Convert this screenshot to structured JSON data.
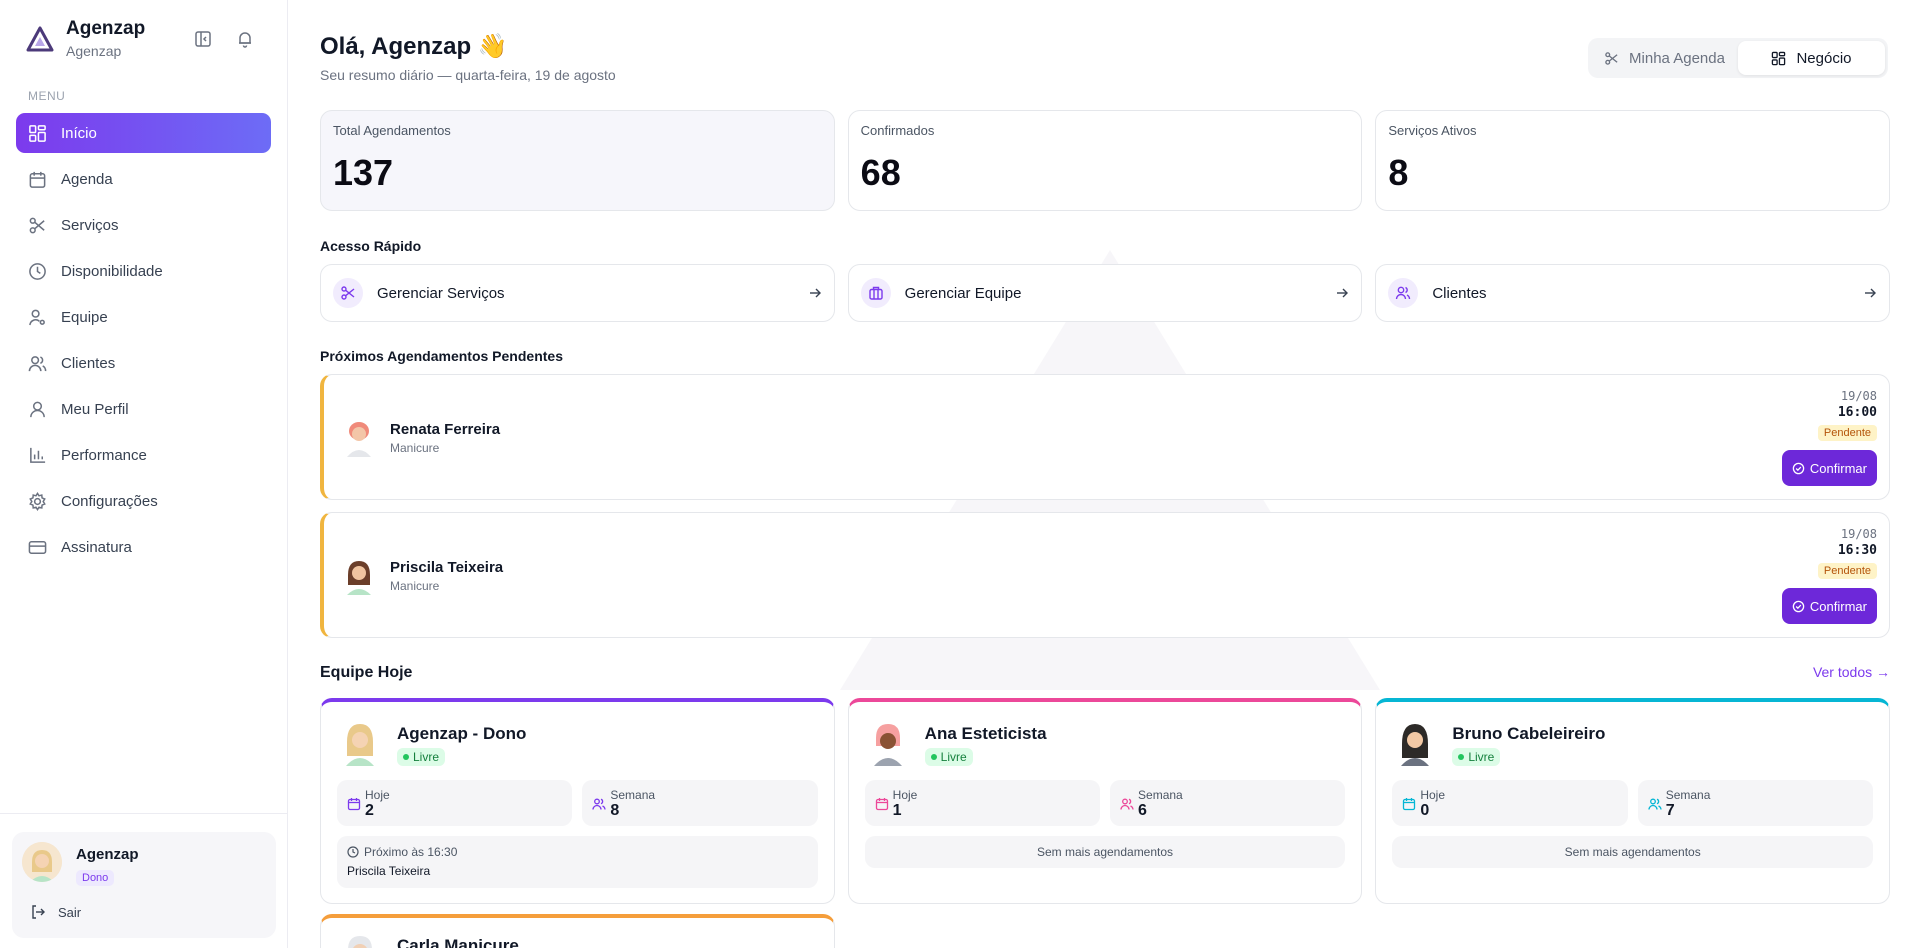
{
  "brand": {
    "name": "Agenzap",
    "subtitle": "Agenzap"
  },
  "sidebar": {
    "menu_caption": "MENU",
    "items": [
      {
        "label": "Início",
        "icon": "grid-icon",
        "active": true
      },
      {
        "label": "Agenda",
        "icon": "calendar-icon"
      },
      {
        "label": "Serviços",
        "icon": "scissors-icon"
      },
      {
        "label": "Disponibilidade",
        "icon": "clock-icon"
      },
      {
        "label": "Equipe",
        "icon": "user-gear-icon"
      },
      {
        "label": "Clientes",
        "icon": "users-icon"
      },
      {
        "label": "Meu Perfil",
        "icon": "user-icon"
      },
      {
        "label": "Performance",
        "icon": "bar-chart-icon"
      },
      {
        "label": "Configurações",
        "icon": "gear-icon"
      },
      {
        "label": "Assinatura",
        "icon": "credit-card-icon"
      }
    ],
    "user": {
      "name": "Agenzap",
      "role": "Dono",
      "logout": "Sair"
    }
  },
  "header": {
    "greeting": "Olá, Agenzap 👋",
    "subtitle": "Seu resumo diário — quarta-feira, 19 de agosto",
    "toggle": [
      {
        "label": "Minha Agenda",
        "icon": "scissors-icon",
        "active": false
      },
      {
        "label": "Negócio",
        "icon": "grid-icon",
        "active": true
      }
    ]
  },
  "stats": [
    {
      "label": "Total Agendamentos",
      "value": "137"
    },
    {
      "label": "Confirmados",
      "value": "68"
    },
    {
      "label": "Serviços Ativos",
      "value": "8"
    }
  ],
  "quick_access": {
    "title": "Acesso Rápido",
    "items": [
      {
        "label": "Gerenciar Serviços",
        "icon": "scissors-icon"
      },
      {
        "label": "Gerenciar Equipe",
        "icon": "briefcase-icon"
      },
      {
        "label": "Clientes",
        "icon": "users-icon"
      }
    ]
  },
  "pending": {
    "title": "Próximos Agendamentos Pendentes",
    "items": [
      {
        "name": "Renata Ferreira",
        "service": "Manicure",
        "date": "19/08",
        "time": "16:00",
        "status": "Pendente",
        "action": "Confirmar"
      },
      {
        "name": "Priscila Teixeira",
        "service": "Manicure",
        "date": "19/08",
        "time": "16:30",
        "status": "Pendente",
        "action": "Confirmar"
      }
    ]
  },
  "team": {
    "title": "Equipe Hoje",
    "see_all": "Ver todos →",
    "members": [
      {
        "name": "Agenzap - Dono",
        "status": "Livre",
        "color": "#7c3aed",
        "today_label": "Hoje",
        "today": "2",
        "week_label": "Semana",
        "week": "8",
        "next_label": "Próximo às 16:30",
        "next_name": "Priscila Teixeira"
      },
      {
        "name": "Ana Esteticista",
        "status": "Livre",
        "color": "#ec4899",
        "today_label": "Hoje",
        "today": "1",
        "week_label": "Semana",
        "week": "6",
        "empty": "Sem mais agendamentos"
      },
      {
        "name": "Bruno Cabeleireiro",
        "status": "Livre",
        "color": "#06b6d4",
        "today_label": "Hoje",
        "today": "0",
        "week_label": "Semana",
        "week": "7",
        "empty": "Sem mais agendamentos"
      },
      {
        "name": "Carla Manicure",
        "color": "#f59e3b"
      }
    ]
  },
  "colors": {
    "accent": "#7c3aed",
    "pending_border": "#f0b53f",
    "confirm_button": "#6d28d9"
  }
}
